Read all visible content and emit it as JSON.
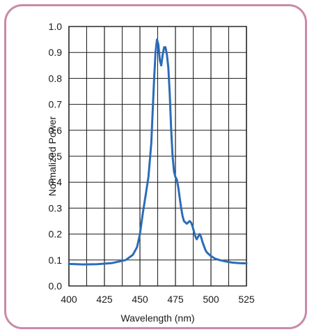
{
  "chart_data": {
    "type": "line",
    "xlabel": "Wavelength (nm)",
    "ylabel": "Normalized Power",
    "xlim": [
      400,
      525
    ],
    "ylim": [
      0.0,
      1.0
    ],
    "grid": true,
    "x_ticks": [
      "400",
      "425",
      "450",
      "475",
      "500",
      "525"
    ],
    "y_ticks": [
      "0.0",
      "0.1",
      "0.2",
      "0.3",
      "0.4",
      "0.5",
      "0.6",
      "0.7",
      "0.8",
      "0.9",
      "1.0"
    ],
    "line_color": "#2b6cb8",
    "frame_color": "#c98aa7",
    "series": [
      {
        "x": [
          400,
          410,
          420,
          430,
          440,
          445,
          448,
          450,
          452,
          454,
          456,
          458,
          459,
          460,
          461,
          462,
          463,
          464,
          465,
          466,
          467,
          468,
          469,
          470,
          471,
          472,
          473,
          474,
          475,
          476,
          477,
          478,
          479,
          480,
          481,
          482,
          483,
          484,
          485,
          486,
          487,
          488,
          489,
          490,
          491,
          492,
          493,
          494,
          495,
          496,
          497,
          498,
          500,
          503,
          506,
          510,
          515,
          520,
          525
        ],
        "y": [
          0.085,
          0.083,
          0.084,
          0.088,
          0.1,
          0.12,
          0.15,
          0.2,
          0.28,
          0.35,
          0.42,
          0.55,
          0.68,
          0.8,
          0.9,
          0.95,
          0.93,
          0.87,
          0.85,
          0.89,
          0.92,
          0.92,
          0.89,
          0.84,
          0.74,
          0.6,
          0.5,
          0.44,
          0.42,
          0.41,
          0.38,
          0.34,
          0.3,
          0.27,
          0.25,
          0.245,
          0.24,
          0.245,
          0.25,
          0.245,
          0.23,
          0.21,
          0.19,
          0.18,
          0.19,
          0.2,
          0.19,
          0.17,
          0.155,
          0.14,
          0.13,
          0.125,
          0.115,
          0.105,
          0.1,
          0.095,
          0.09,
          0.088,
          0.087
        ]
      }
    ]
  }
}
